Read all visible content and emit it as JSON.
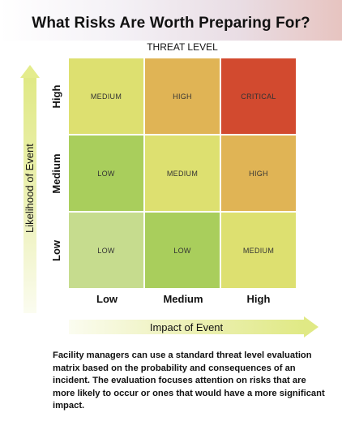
{
  "title": "What Risks Are Worth Preparing For?",
  "threat_level_label": "THREAT LEVEL",
  "y_axis_label": "Likelihood of Event",
  "x_axis_label": "Impact of Event",
  "row_labels": [
    "High",
    "Medium",
    "Low"
  ],
  "col_labels": [
    "Low",
    "Medium",
    "High"
  ],
  "matrix": [
    [
      {
        "label": "MEDIUM",
        "color": "#dde070"
      },
      {
        "label": "HIGH",
        "color": "#e0b455"
      },
      {
        "label": "CRITICAL",
        "color": "#d24a2f"
      }
    ],
    [
      {
        "label": "LOW",
        "color": "#a9ce5c"
      },
      {
        "label": "MEDIUM",
        "color": "#dde070"
      },
      {
        "label": "HIGH",
        "color": "#e0b455"
      }
    ],
    [
      {
        "label": "LOW",
        "color": "#c6dc8e"
      },
      {
        "label": "LOW",
        "color": "#a9ce5c"
      },
      {
        "label": "MEDIUM",
        "color": "#dde070"
      }
    ]
  ],
  "caption": "Facility managers can use a standard threat level evaluation matrix based on the probability and consequences of an incident. The evaluation focuses attention on risks that are more likely to occur or ones that would have a more significant impact."
}
